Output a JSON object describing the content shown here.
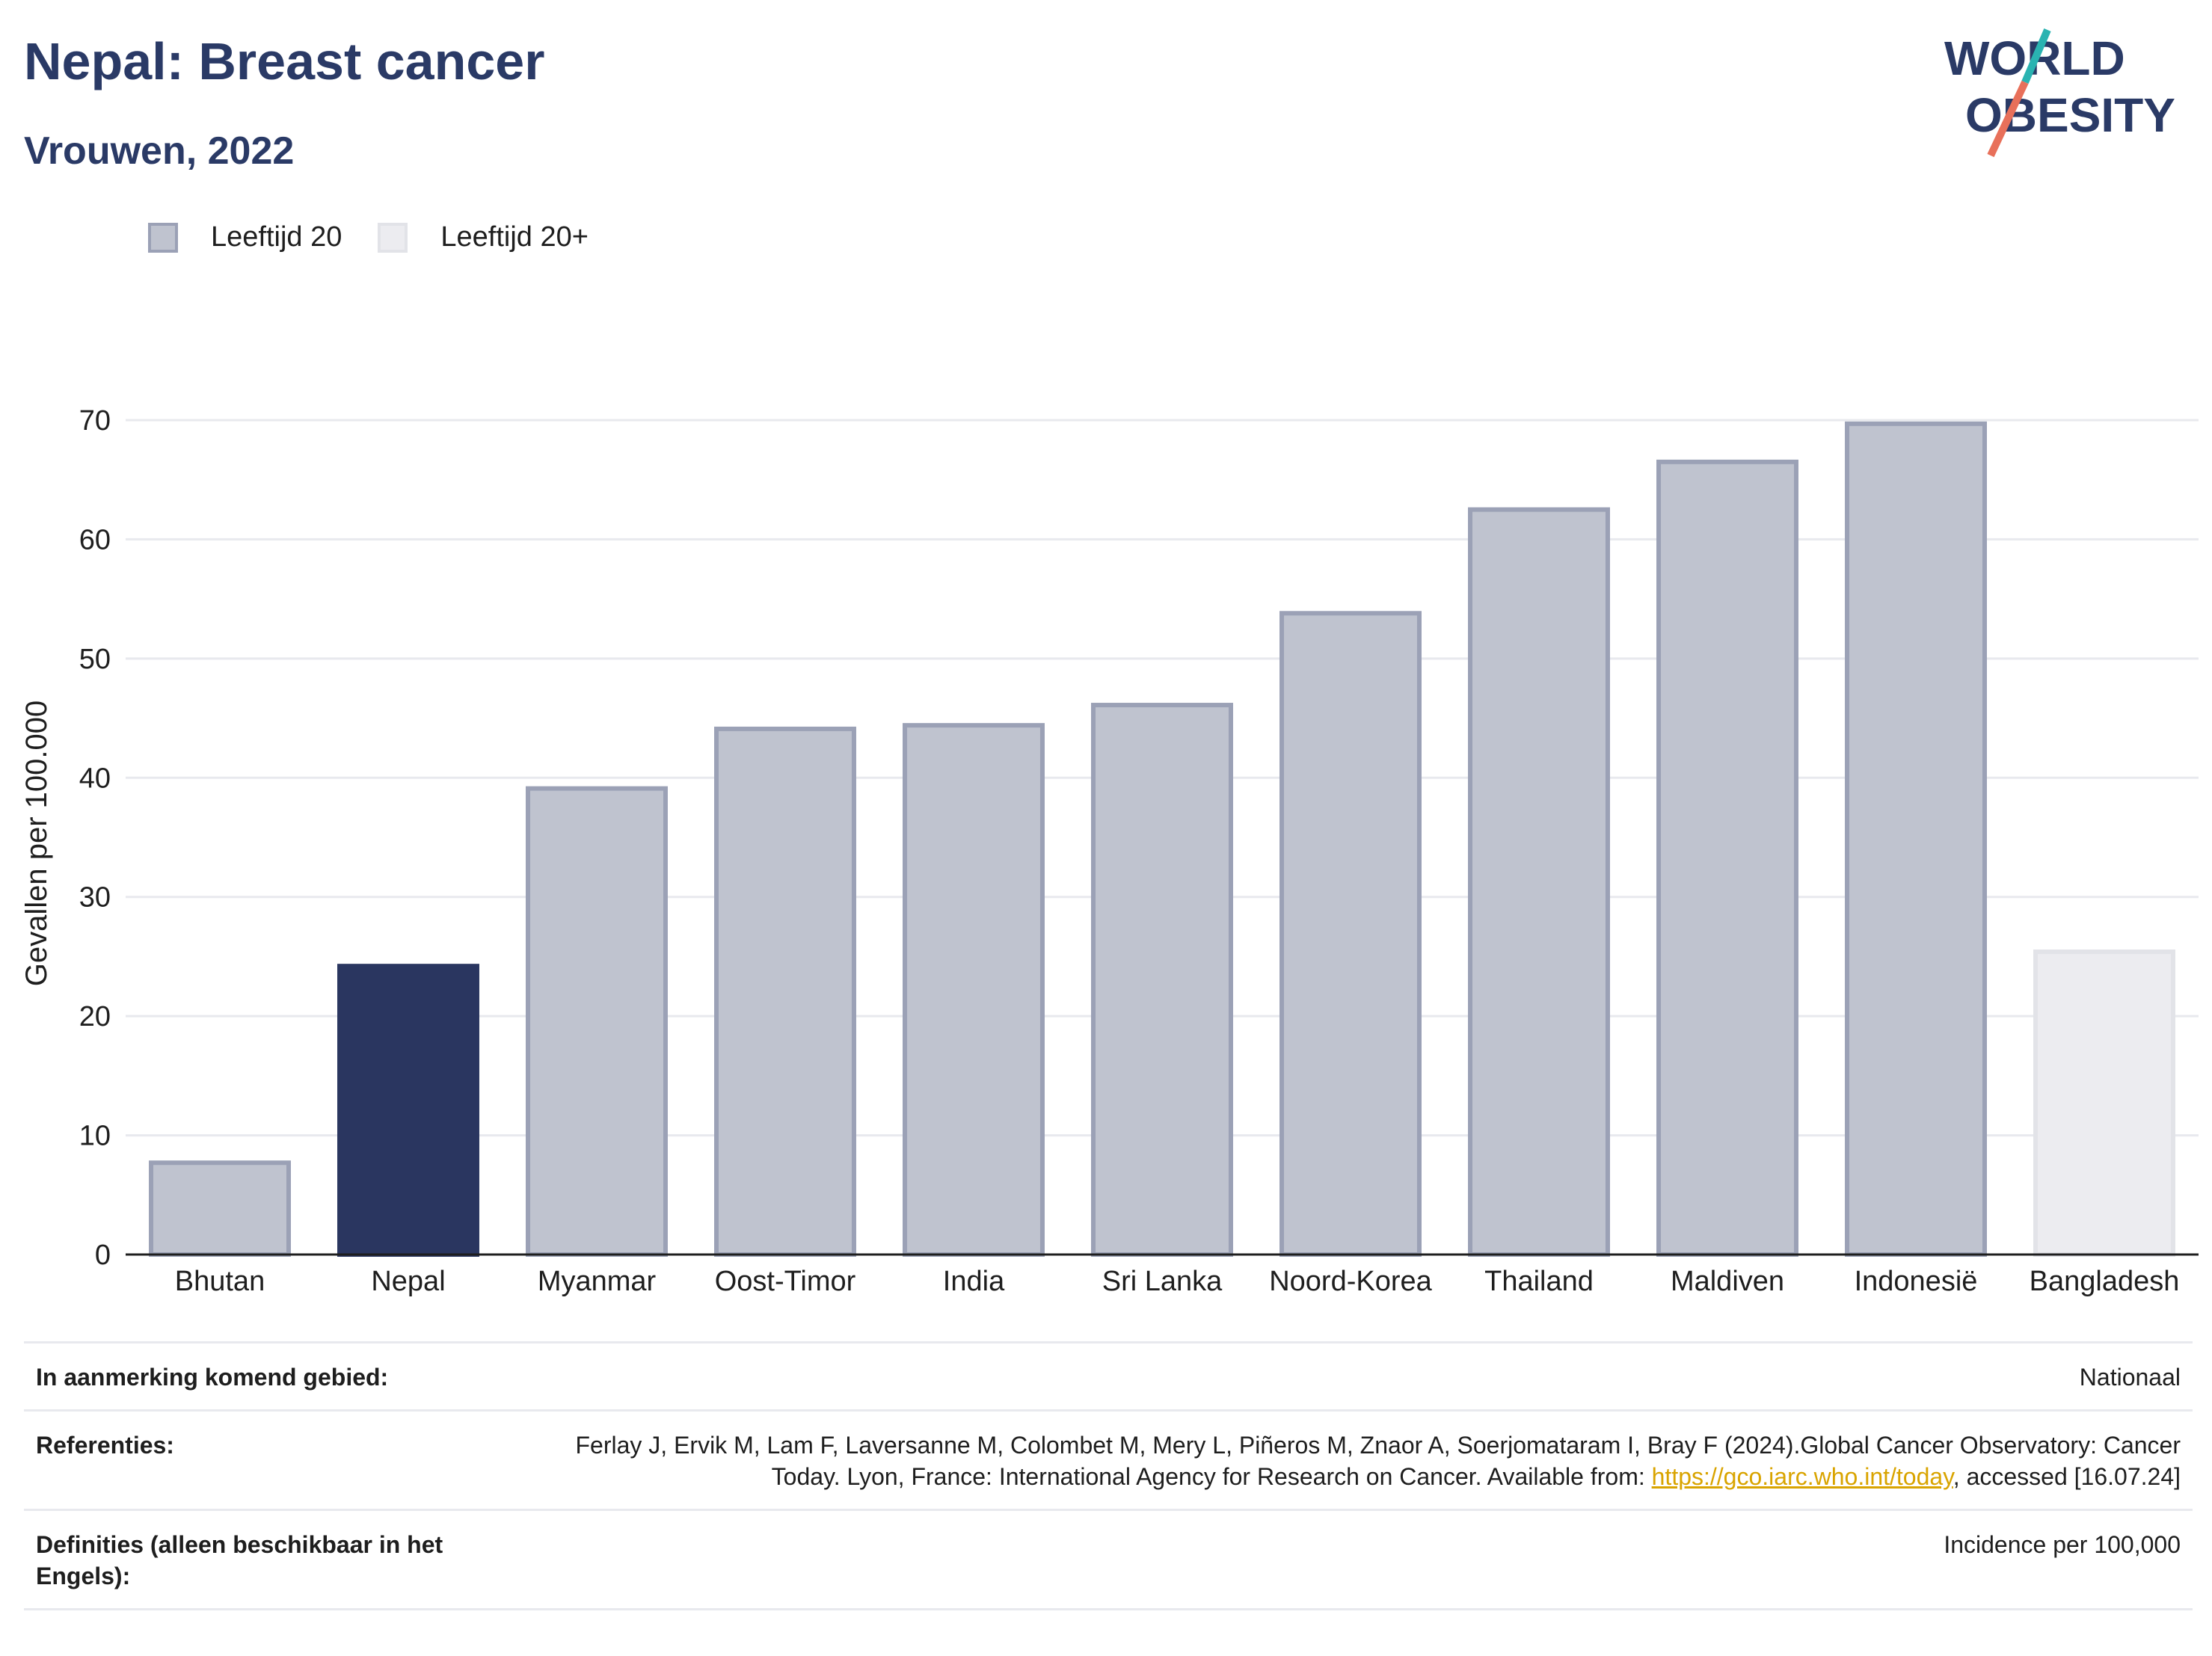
{
  "header": {
    "title": "Nepal: Breast cancer",
    "subtitle": "Vrouwen, 2022"
  },
  "logo": {
    "line1": "WORLD",
    "line2": "OBESITY",
    "colors": {
      "text": "#2a3a66",
      "slash_top": "#2ab3b1",
      "slash_bottom": "#e8705a"
    }
  },
  "legend": [
    {
      "label": "Leeftijd 20",
      "color": "#bfc3cf"
    },
    {
      "label": "Leeftijd 20+",
      "color": "#ececf0"
    }
  ],
  "colors": {
    "highlight": "#2a3660",
    "age20": "#bfc3cf",
    "age20_border": "#9ba1b6",
    "age20plus": "#ececf0",
    "age20plus_border": "#e2e3e8",
    "grid": "#e8e9ee",
    "axis": "#1e1e1e"
  },
  "chart_data": {
    "type": "bar",
    "title": "Nepal: Breast cancer",
    "subtitle": "Vrouwen, 2022",
    "xlabel": "",
    "ylabel": "Gevallen per 100.000",
    "ylim": [
      0,
      70
    ],
    "yticks": [
      0,
      10,
      20,
      30,
      40,
      50,
      60,
      70
    ],
    "grid": true,
    "legend_placement": "top-left",
    "categories": [
      "Bhutan",
      "Nepal",
      "Myanmar",
      "Oost-Timor",
      "India",
      "Sri Lanka",
      "Noord-Korea",
      "Thailand",
      "Maldiven",
      "Indonesië",
      "Bangladesh"
    ],
    "values": [
      7.7,
      24.2,
      39.1,
      44.1,
      44.4,
      46.1,
      53.8,
      62.5,
      66.5,
      69.7,
      25.4
    ],
    "groups": [
      "Leeftijd 20",
      "highlight",
      "Leeftijd 20",
      "Leeftijd 20",
      "Leeftijd 20",
      "Leeftijd 20",
      "Leeftijd 20",
      "Leeftijd 20",
      "Leeftijd 20",
      "Leeftijd 20",
      "Leeftijd 20+"
    ]
  },
  "footer": {
    "rows": [
      {
        "label": "In aanmerking komend gebied:",
        "value": "Nationaal"
      },
      {
        "label": "Referenties:",
        "value_before": "Ferlay J, Ervik M, Lam F, Laversanne M, Colombet M, Mery L, Piñeros M, Znaor A, Soerjomataram I, Bray F (2024).Global Cancer Observatory: Cancer Today. Lyon, France: International Agency for Research on Cancer. Available from: ",
        "link": "https://gco.iarc.who.int/today",
        "value_after": ", accessed [16.07.24]"
      },
      {
        "label": "Definities (alleen beschikbaar in het Engels):",
        "value": "Incidence per 100,000"
      }
    ]
  }
}
